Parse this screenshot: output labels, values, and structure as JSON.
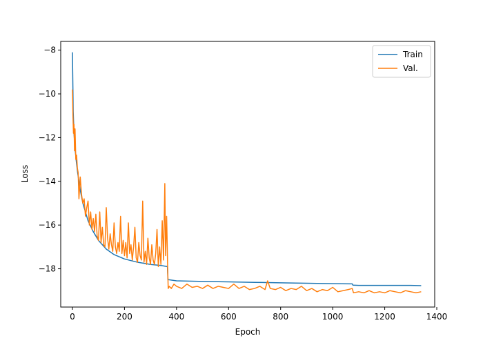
{
  "chart_data": {
    "type": "line",
    "title": "",
    "xlabel": "Epoch",
    "ylabel": "Loss",
    "xlim": [
      -45,
      1392
    ],
    "ylim": [
      -19.75,
      -7.6
    ],
    "xticks": [
      0,
      200,
      400,
      600,
      800,
      1000,
      1200,
      1400
    ],
    "yticks": [
      -8,
      -10,
      -12,
      -14,
      -16,
      -18
    ],
    "grid": false,
    "legend": "top-right",
    "series": [
      {
        "name": "Train",
        "color": "#1f77b4",
        "x": [
          0,
          3,
          6,
          10,
          15,
          20,
          30,
          40,
          60,
          80,
          100,
          130,
          160,
          200,
          250,
          300,
          340,
          365,
          367,
          370,
          400,
          500,
          600,
          700,
          800,
          900,
          1000,
          1075,
          1078,
          1100,
          1200,
          1300,
          1340
        ],
        "y": [
          -8.1,
          -10.8,
          -11.8,
          -12.5,
          -13.1,
          -13.6,
          -14.4,
          -15.0,
          -15.8,
          -16.3,
          -16.7,
          -17.1,
          -17.35,
          -17.55,
          -17.7,
          -17.8,
          -17.85,
          -17.9,
          -18.5,
          -18.5,
          -18.55,
          -18.58,
          -18.6,
          -18.62,
          -18.64,
          -18.66,
          -18.68,
          -18.69,
          -18.75,
          -18.76,
          -18.76,
          -18.76,
          -18.77
        ]
      },
      {
        "name": "Val.",
        "color": "#ff7f0e",
        "x": [
          0,
          2,
          4,
          6,
          8,
          10,
          13,
          16,
          19,
          22,
          25,
          30,
          35,
          40,
          45,
          50,
          55,
          60,
          65,
          70,
          75,
          80,
          85,
          90,
          95,
          100,
          105,
          110,
          115,
          120,
          125,
          130,
          135,
          140,
          145,
          150,
          155,
          160,
          165,
          170,
          175,
          180,
          185,
          190,
          195,
          200,
          205,
          210,
          215,
          220,
          225,
          230,
          235,
          240,
          245,
          250,
          255,
          260,
          265,
          270,
          275,
          280,
          285,
          290,
          295,
          300,
          305,
          310,
          315,
          320,
          325,
          330,
          335,
          340,
          345,
          350,
          355,
          358,
          362,
          366,
          368,
          372,
          380,
          390,
          400,
          420,
          440,
          460,
          480,
          500,
          520,
          540,
          560,
          580,
          600,
          620,
          640,
          660,
          680,
          700,
          720,
          740,
          750,
          760,
          780,
          800,
          820,
          840,
          860,
          880,
          900,
          920,
          940,
          960,
          980,
          1000,
          1020,
          1040,
          1060,
          1075,
          1080,
          1100,
          1120,
          1140,
          1160,
          1180,
          1200,
          1220,
          1240,
          1260,
          1280,
          1300,
          1320,
          1340
        ],
        "y": [
          -9.8,
          -11.0,
          -11.8,
          -11.4,
          -12.6,
          -11.6,
          -13.0,
          -12.8,
          -13.4,
          -13.6,
          -14.8,
          -13.8,
          -14.6,
          -15.0,
          -14.8,
          -15.6,
          -15.2,
          -14.9,
          -16.0,
          -15.4,
          -16.2,
          -15.7,
          -16.3,
          -15.5,
          -16.5,
          -16.7,
          -15.4,
          -16.8,
          -16.1,
          -16.9,
          -17.0,
          -15.2,
          -16.6,
          -17.1,
          -16.4,
          -16.9,
          -17.2,
          -15.9,
          -17.0,
          -17.3,
          -16.8,
          -17.2,
          -15.6,
          -17.3,
          -16.7,
          -17.4,
          -16.8,
          -17.5,
          -15.9,
          -17.3,
          -16.9,
          -17.6,
          -17.0,
          -16.1,
          -17.5,
          -17.7,
          -16.8,
          -17.4,
          -17.6,
          -14.9,
          -17.7,
          -17.2,
          -17.8,
          -16.6,
          -17.5,
          -17.8,
          -16.9,
          -17.6,
          -17.8,
          -17.3,
          -16.2,
          -17.9,
          -17.0,
          -17.8,
          -15.8,
          -17.6,
          -14.1,
          -17.4,
          -15.6,
          -18.0,
          -18.9,
          -18.8,
          -18.9,
          -18.7,
          -18.8,
          -18.9,
          -18.7,
          -18.85,
          -18.8,
          -18.9,
          -18.75,
          -18.9,
          -18.8,
          -18.85,
          -18.9,
          -18.7,
          -18.9,
          -18.8,
          -18.95,
          -18.9,
          -18.8,
          -18.95,
          -18.55,
          -18.9,
          -18.95,
          -18.85,
          -19.0,
          -18.9,
          -18.95,
          -18.8,
          -19.0,
          -18.9,
          -19.05,
          -18.95,
          -19.0,
          -18.85,
          -19.05,
          -19.0,
          -18.95,
          -18.9,
          -19.1,
          -19.05,
          -19.1,
          -19.0,
          -19.1,
          -19.05,
          -19.1,
          -19.0,
          -19.05,
          -19.1,
          -19.0,
          -19.05,
          -19.1,
          -19.05
        ]
      }
    ]
  }
}
